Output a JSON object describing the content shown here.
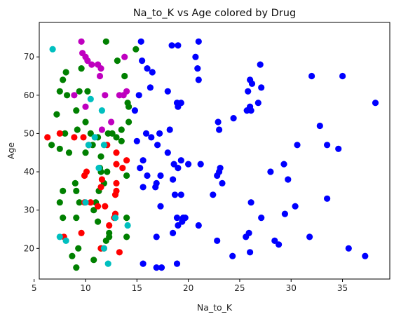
{
  "chart_data": {
    "type": "scatter",
    "title": "Na_to_K vs Age colored by Drug",
    "xlabel": "Na_to_K",
    "ylabel": "Age",
    "xlim": [
      5.5,
      39.6
    ],
    "ylim": [
      12,
      79
    ],
    "xticks": [
      5,
      10,
      15,
      20,
      25,
      30,
      35
    ],
    "yticks": [
      20,
      30,
      40,
      50,
      60,
      70
    ],
    "grid": false,
    "legend": false,
    "colors": {
      "blue": "#0000ff",
      "green": "#008000",
      "red": "#ff0000",
      "cyan": "#00bfbf",
      "magenta": "#bf00bf"
    },
    "series": [
      {
        "color": "#0000ff",
        "points": [
          [
            15.4,
            74
          ],
          [
            18.4,
            73
          ],
          [
            19.0,
            73
          ],
          [
            21.0,
            74
          ],
          [
            15.5,
            69
          ],
          [
            16.0,
            67
          ],
          [
            16.5,
            66
          ],
          [
            20.7,
            70
          ],
          [
            20.9,
            67
          ],
          [
            21.0,
            64
          ],
          [
            27.0,
            68
          ],
          [
            26.0,
            64
          ],
          [
            26.2,
            63
          ],
          [
            25.8,
            61
          ],
          [
            27.1,
            62
          ],
          [
            32.0,
            65
          ],
          [
            35.0,
            65
          ],
          [
            18.0,
            61
          ],
          [
            15.2,
            60
          ],
          [
            14.8,
            56
          ],
          [
            16.3,
            62
          ],
          [
            18.9,
            58
          ],
          [
            19.0,
            57
          ],
          [
            19.3,
            58
          ],
          [
            26.0,
            57
          ],
          [
            26.8,
            58
          ],
          [
            26.1,
            56
          ],
          [
            25.7,
            56
          ],
          [
            38.2,
            58
          ],
          [
            24.4,
            54
          ],
          [
            22.9,
            53
          ],
          [
            23.0,
            51
          ],
          [
            32.8,
            52
          ],
          [
            15.0,
            48
          ],
          [
            15.9,
            50
          ],
          [
            16.4,
            49
          ],
          [
            17.2,
            50
          ],
          [
            18.2,
            51
          ],
          [
            17.0,
            47
          ],
          [
            30.6,
            47
          ],
          [
            33.5,
            47
          ],
          [
            34.6,
            46
          ],
          [
            15.3,
            41
          ],
          [
            15.6,
            43
          ],
          [
            18.0,
            45
          ],
          [
            18.6,
            42
          ],
          [
            19.3,
            43
          ],
          [
            20.0,
            42
          ],
          [
            21.2,
            42
          ],
          [
            16.0,
            39
          ],
          [
            17.3,
            39
          ],
          [
            15.6,
            36
          ],
          [
            16.8,
            36
          ],
          [
            16.9,
            37
          ],
          [
            18.5,
            38
          ],
          [
            19.0,
            41
          ],
          [
            22.8,
            39
          ],
          [
            23.0,
            40
          ],
          [
            23.1,
            41
          ],
          [
            23.3,
            37
          ],
          [
            28.0,
            40
          ],
          [
            29.3,
            42
          ],
          [
            29.7,
            38
          ],
          [
            18.7,
            34
          ],
          [
            19.3,
            34
          ],
          [
            22.4,
            34
          ],
          [
            17.3,
            31
          ],
          [
            26.1,
            32
          ],
          [
            30.4,
            31
          ],
          [
            33.5,
            33
          ],
          [
            18.9,
            28
          ],
          [
            19.5,
            28
          ],
          [
            19.7,
            28
          ],
          [
            19.0,
            26
          ],
          [
            19.4,
            27
          ],
          [
            18.5,
            24
          ],
          [
            16.9,
            23
          ],
          [
            21.0,
            26
          ],
          [
            22.8,
            22
          ],
          [
            25.6,
            23
          ],
          [
            25.9,
            24
          ],
          [
            27.1,
            28
          ],
          [
            28.4,
            22
          ],
          [
            28.8,
            21
          ],
          [
            29.4,
            29
          ],
          [
            31.8,
            23
          ],
          [
            16.9,
            15
          ],
          [
            17.4,
            15
          ],
          [
            15.6,
            16
          ],
          [
            18.9,
            16
          ],
          [
            24.3,
            18
          ],
          [
            26.0,
            19
          ],
          [
            35.6,
            20
          ],
          [
            37.2,
            18
          ]
        ]
      },
      {
        "color": "#008000",
        "points": [
          [
            12.0,
            74
          ],
          [
            13.1,
            69
          ],
          [
            14.9,
            72
          ],
          [
            8.1,
            66
          ],
          [
            7.8,
            64
          ],
          [
            9.6,
            67
          ],
          [
            7.5,
            61
          ],
          [
            8.2,
            60
          ],
          [
            9.4,
            61
          ],
          [
            10.2,
            61
          ],
          [
            13.8,
            65
          ],
          [
            14.1,
            58
          ],
          [
            14.2,
            57
          ],
          [
            9.1,
            56
          ],
          [
            7.2,
            55
          ],
          [
            10.0,
            53
          ],
          [
            13.0,
            49
          ],
          [
            13.5,
            51
          ],
          [
            14.2,
            53
          ],
          [
            8.0,
            50
          ],
          [
            9.2,
            51
          ],
          [
            10.5,
            50
          ],
          [
            11.2,
            49
          ],
          [
            13.5,
            48
          ],
          [
            12.2,
            50
          ],
          [
            12.6,
            50
          ],
          [
            6.7,
            47
          ],
          [
            7.5,
            46
          ],
          [
            8.4,
            45
          ],
          [
            10.0,
            45
          ],
          [
            10.7,
            47
          ],
          [
            11.5,
            44
          ],
          [
            11.4,
            41
          ],
          [
            11.5,
            40
          ],
          [
            12.1,
            40
          ],
          [
            14.0,
            39
          ],
          [
            9.0,
            37
          ],
          [
            11.3,
            35
          ],
          [
            11.8,
            37
          ],
          [
            7.8,
            35
          ],
          [
            9.1,
            35
          ],
          [
            11.0,
            32
          ],
          [
            9.4,
            32
          ],
          [
            7.5,
            32
          ],
          [
            10.8,
            30
          ],
          [
            9.1,
            28
          ],
          [
            7.8,
            28
          ],
          [
            11.2,
            27
          ],
          [
            14.0,
            28
          ],
          [
            12.3,
            24
          ],
          [
            14.0,
            23
          ],
          [
            8.7,
            18
          ],
          [
            9.3,
            20
          ],
          [
            10.8,
            17
          ],
          [
            12.0,
            22
          ],
          [
            12.3,
            23
          ],
          [
            9.1,
            15
          ],
          [
            11.5,
            20
          ]
        ]
      },
      {
        "color": "#ff0000",
        "points": [
          [
            6.3,
            49
          ],
          [
            7.5,
            50
          ],
          [
            8.9,
            49
          ],
          [
            9.8,
            49
          ],
          [
            10.3,
            47
          ],
          [
            12.1,
            47
          ],
          [
            13.0,
            42
          ],
          [
            13.0,
            45
          ],
          [
            13.6,
            41
          ],
          [
            14.0,
            43
          ],
          [
            9.9,
            39
          ],
          [
            10.1,
            40
          ],
          [
            11.5,
            36
          ],
          [
            11.6,
            38
          ],
          [
            13.0,
            35
          ],
          [
            13.0,
            37
          ],
          [
            12.9,
            34
          ],
          [
            9.9,
            32
          ],
          [
            10.5,
            32
          ],
          [
            11.2,
            31
          ],
          [
            11.9,
            31
          ],
          [
            12.3,
            26
          ],
          [
            12.8,
            28
          ],
          [
            12.9,
            29
          ],
          [
            9.6,
            24
          ],
          [
            7.9,
            23
          ],
          [
            11.8,
            20
          ],
          [
            11.5,
            20
          ],
          [
            13.3,
            19
          ]
        ]
      },
      {
        "color": "#00bfbf",
        "points": [
          [
            6.8,
            72
          ],
          [
            10.5,
            59
          ],
          [
            11.6,
            56
          ],
          [
            10.9,
            49
          ],
          [
            11.8,
            47
          ],
          [
            10.3,
            47
          ],
          [
            11.3,
            41
          ],
          [
            10.0,
            32
          ],
          [
            12.9,
            28
          ],
          [
            14.1,
            26
          ],
          [
            7.5,
            23
          ],
          [
            8.1,
            22
          ],
          [
            11.8,
            20
          ],
          [
            12.2,
            16
          ]
        ]
      },
      {
        "color": "#bf00bf",
        "points": [
          [
            9.6,
            74
          ],
          [
            9.7,
            71
          ],
          [
            10.0,
            70
          ],
          [
            10.2,
            69
          ],
          [
            10.6,
            68
          ],
          [
            11.2,
            68
          ],
          [
            11.5,
            67
          ],
          [
            11.4,
            65
          ],
          [
            13.8,
            70
          ],
          [
            8.9,
            60
          ],
          [
            11.9,
            60
          ],
          [
            13.3,
            60
          ],
          [
            13.7,
            60
          ],
          [
            14.0,
            61
          ],
          [
            10.0,
            57
          ],
          [
            12.5,
            53
          ],
          [
            11.6,
            51
          ]
        ]
      }
    ]
  }
}
